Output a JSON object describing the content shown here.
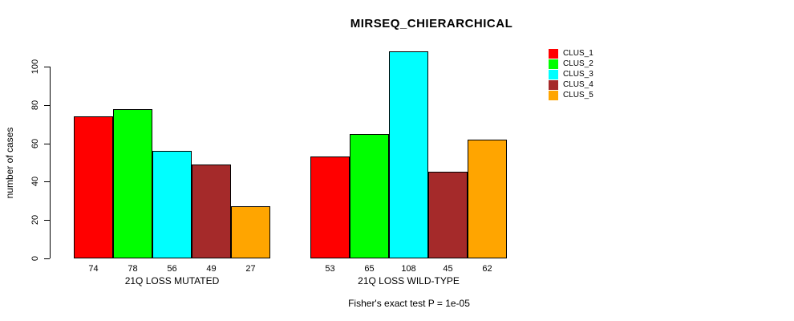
{
  "chart_data": {
    "type": "bar",
    "title": "MIRSEQ_CHIERARCHICAL",
    "ylabel": "number of cases",
    "xlabel": "",
    "ylim": [
      0,
      100
    ],
    "yticks": [
      0,
      20,
      40,
      60,
      80,
      100
    ],
    "categories": [
      "21Q LOSS MUTATED",
      "21Q LOSS WILD-TYPE"
    ],
    "series": [
      {
        "name": "CLUS_1",
        "color": "#FF0000",
        "values": [
          74,
          53
        ]
      },
      {
        "name": "CLUS_2",
        "color": "#00FF00",
        "values": [
          78,
          65
        ]
      },
      {
        "name": "CLUS_3",
        "color": "#00FFFF",
        "values": [
          56,
          108
        ]
      },
      {
        "name": "CLUS_4",
        "color": "#A52A2A",
        "values": [
          49,
          45
        ]
      },
      {
        "name": "CLUS_5",
        "color": "#FFA500",
        "values": [
          27,
          62
        ]
      }
    ],
    "bar_value_labels_shown": true,
    "annotation": "Fisher's exact test P = 1e-05",
    "legend_position": "right",
    "grid": false
  }
}
